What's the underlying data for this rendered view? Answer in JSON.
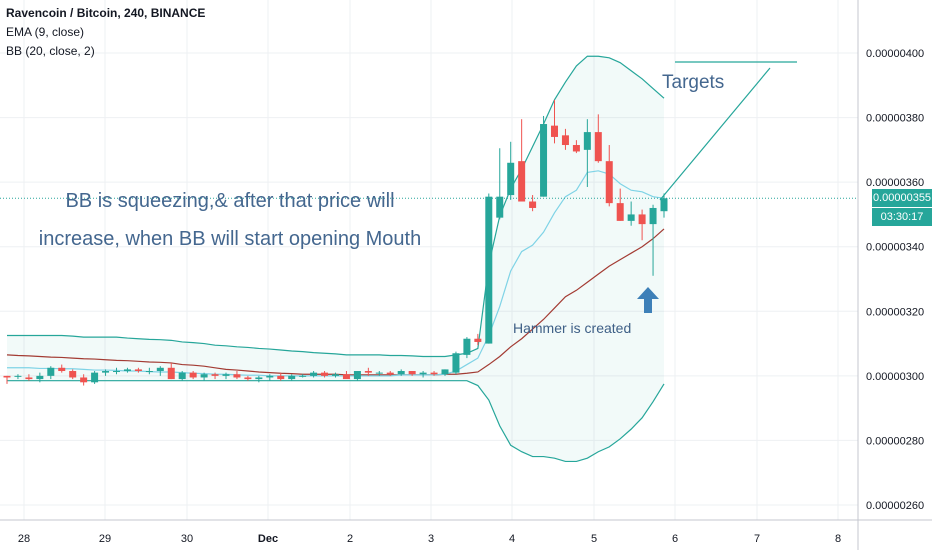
{
  "header": {
    "title": "Ravencoin / Bitcoin, 240, BINANCE",
    "ema": "EMA (9, close)",
    "bb": "BB (20, close, 2)"
  },
  "annotations": {
    "main_line1": "BB is squeezing,& after that price will",
    "main_line2": "increase, when BB will start opening Mouth",
    "targets": "Targets",
    "hammer": "Hammer is created"
  },
  "price_tag": "0.00000355",
  "timer_tag": "03:30:17",
  "colors": {
    "up": "#26a69a",
    "down": "#ef5350",
    "ema": "#7fd3e6",
    "bb_basis": "#a33b33",
    "bb_band": "#26a69a",
    "annotation_text": "#44678f",
    "arrow": "#3e80b8"
  },
  "icons": {
    "arrow": "arrow-up-icon"
  },
  "chart_data": {
    "type": "candlestick",
    "x_ticks": [
      "28",
      "29",
      "30",
      "Dec",
      "2",
      "3",
      "4",
      "5",
      "6",
      "7",
      "8"
    ],
    "y_ticks": [
      "0.00000260",
      "0.00000280",
      "0.00000300",
      "0.00000320",
      "0.00000340",
      "0.00000360",
      "0.00000380",
      "0.00000400"
    ],
    "ylim": [
      2.55e-06,
      4.1e-06
    ],
    "last_price": 3.55e-06,
    "grid": true,
    "candles": [
      [
        3e-06,
        3e-06,
        2.975e-06,
        2.995e-06
      ],
      [
        3e-06,
        3.005e-06,
        2.99e-06,
        3e-06
      ],
      [
        2.995e-06,
        3.005e-06,
        2.985e-06,
        2.99e-06
      ],
      [
        2.99e-06,
        3.01e-06,
        2.98e-06,
        3e-06
      ],
      [
        3e-06,
        3.03e-06,
        2.99e-06,
        3.025e-06
      ],
      [
        3.025e-06,
        3.035e-06,
        3.01e-06,
        3.015e-06
      ],
      [
        3.015e-06,
        3.02e-06,
        2.99e-06,
        2.995e-06
      ],
      [
        2.995e-06,
        3.005e-06,
        2.97e-06,
        2.98e-06
      ],
      [
        2.98e-06,
        3.015e-06,
        2.975e-06,
        3.01e-06
      ],
      [
        3.01e-06,
        3.02e-06,
        3e-06,
        3.015e-06
      ],
      [
        3.015e-06,
        3.025e-06,
        3.005e-06,
        3.015e-06
      ],
      [
        3.015e-06,
        3.025e-06,
        3.01e-06,
        3.02e-06
      ],
      [
        3.02e-06,
        3.025e-06,
        3.01e-06,
        3.015e-06
      ],
      [
        3.015e-06,
        3.025e-06,
        3.005e-06,
        3.015e-06
      ],
      [
        3.015e-06,
        3.03e-06,
        3e-06,
        3.025e-06
      ],
      [
        3.025e-06,
        3.04e-06,
        2.99e-06,
        2.99e-06
      ],
      [
        2.99e-06,
        3.015e-06,
        2.985e-06,
        3.01e-06
      ],
      [
        3.01e-06,
        3.015e-06,
        2.99e-06,
        2.995e-06
      ],
      [
        2.995e-06,
        3.01e-06,
        2.985e-06,
        3.005e-06
      ],
      [
        3.005e-06,
        3.01e-06,
        2.99e-06,
        3e-06
      ],
      [
        3e-06,
        3.01e-06,
        2.99e-06,
        3.005e-06
      ],
      [
        3.005e-06,
        3.015e-06,
        2.99e-06,
        2.995e-06
      ],
      [
        2.995e-06,
        3e-06,
        2.985e-06,
        2.99e-06
      ],
      [
        2.99e-06,
        3e-06,
        2.98e-06,
        2.995e-06
      ],
      [
        2.995e-06,
        3.005e-06,
        2.985e-06,
        3e-06
      ],
      [
        3e-06,
        3.01e-06,
        2.985e-06,
        2.99e-06
      ],
      [
        2.99e-06,
        3.005e-06,
        2.985e-06,
        3e-06
      ],
      [
        3e-06,
        3.005e-06,
        2.995e-06,
        3e-06
      ],
      [
        3e-06,
        3.015e-06,
        2.995e-06,
        3.01e-06
      ],
      [
        3.01e-06,
        3.015e-06,
        2.995e-06,
        3e-06
      ],
      [
        3e-06,
        3.01e-06,
        2.995e-06,
        3.005e-06
      ],
      [
        3.005e-06,
        3.015e-06,
        2.995e-06,
        2.99e-06
      ],
      [
        2.99e-06,
        3.015e-06,
        2.985e-06,
        3.015e-06
      ],
      [
        3.015e-06,
        3.025e-06,
        3e-06,
        3.01e-06
      ],
      [
        3.01e-06,
        3.015e-06,
        3e-06,
        3.01e-06
      ],
      [
        3.01e-06,
        3.015e-06,
        3e-06,
        3.005e-06
      ],
      [
        3.005e-06,
        3.02e-06,
        3e-06,
        3.015e-06
      ],
      [
        3.015e-06,
        3.015e-06,
        3e-06,
        3.005e-06
      ],
      [
        3.005e-06,
        3.015e-06,
        2.995e-06,
        3.01e-06
      ],
      [
        3.01e-06,
        3.015e-06,
        3e-06,
        3.005e-06
      ],
      [
        3.005e-06,
        3.02e-06,
        3e-06,
        3.02e-06
      ],
      [
        3.01e-06,
        3.075e-06,
        3.005e-06,
        3.07e-06
      ],
      [
        3.065e-06,
        3.12e-06,
        3.055e-06,
        3.115e-06
      ],
      [
        3.115e-06,
        3.13e-06,
        3.095e-06,
        3.105e-06
      ],
      [
        3.1e-06,
        3.565e-06,
        3.1e-06,
        3.555e-06
      ],
      [
        3.49e-06,
        3.705e-06,
        3.485e-06,
        3.555e-06
      ],
      [
        3.56e-06,
        3.725e-06,
        3.545e-06,
        3.66e-06
      ],
      [
        3.665e-06,
        3.795e-06,
        3.54e-06,
        3.54e-06
      ],
      [
        3.54e-06,
        3.56e-06,
        3.51e-06,
        3.52e-06
      ],
      [
        3.555e-06,
        3.805e-06,
        3.555e-06,
        3.78e-06
      ],
      [
        3.775e-06,
        3.855e-06,
        3.72e-06,
        3.74e-06
      ],
      [
        3.745e-06,
        3.765e-06,
        3.7e-06,
        3.715e-06
      ],
      [
        3.715e-06,
        3.73e-06,
        3.69e-06,
        3.695e-06
      ],
      [
        3.7e-06,
        3.795e-06,
        3.585e-06,
        3.755e-06
      ],
      [
        3.755e-06,
        3.81e-06,
        3.66e-06,
        3.665e-06
      ],
      [
        3.665e-06,
        3.715e-06,
        3.525e-06,
        3.535e-06
      ],
      [
        3.535e-06,
        3.58e-06,
        3.48e-06,
        3.48e-06
      ],
      [
        3.48e-06,
        3.54e-06,
        3.465e-06,
        3.5e-06
      ],
      [
        3.5e-06,
        3.515e-06,
        3.42e-06,
        3.47e-06
      ],
      [
        3.47e-06,
        3.53e-06,
        3.31e-06,
        3.52e-06
      ],
      [
        3.51e-06,
        3.565e-06,
        3.49e-06,
        3.55e-06
      ]
    ],
    "ema": [
      3.025e-06,
      3.025e-06,
      3.025e-06,
      3.023e-06,
      3.023e-06,
      3.022e-06,
      3.022e-06,
      3.02e-06,
      3.018e-06,
      3.018e-06,
      3.017e-06,
      3.015e-06,
      3.015e-06,
      3.013e-06,
      3.012e-06,
      3.012e-06,
      3.01e-06,
      3.008e-06,
      3.007e-06,
      3.005e-06,
      3.005e-06,
      3.003e-06,
      3.002e-06,
      3.002e-06,
      3e-06,
      3e-06,
      3e-06,
      3e-06,
      3e-06,
      3e-06,
      3e-06,
      3e-06,
      3e-06,
      3e-06,
      3e-06,
      3e-06,
      3.003e-06,
      3.003e-06,
      3.003e-06,
      3.003e-06,
      3.005e-06,
      3.015e-06,
      3.035e-06,
      3.055e-06,
      3.125e-06,
      3.215e-06,
      3.325e-06,
      3.385e-06,
      3.405e-06,
      3.445e-06,
      3.505e-06,
      3.555e-06,
      3.575e-06,
      3.63e-06,
      3.635e-06,
      3.625e-06,
      3.595e-06,
      3.575e-06,
      3.57e-06,
      3.555e-06,
      3.55e-06
    ],
    "bb_basis": [
      3.065e-06,
      3.063e-06,
      3.062e-06,
      3.06e-06,
      3.058e-06,
      3.057e-06,
      3.055e-06,
      3.053e-06,
      3.052e-06,
      3.05e-06,
      3.048e-06,
      3.047e-06,
      3.045e-06,
      3.043e-06,
      3.042e-06,
      3.04e-06,
      3.035e-06,
      3.033e-06,
      3.03e-06,
      3.025e-06,
      3.02e-06,
      3.018e-06,
      3.015e-06,
      3.012e-06,
      3.01e-06,
      3.008e-06,
      3.007e-06,
      3.005e-06,
      3.005e-06,
      3.005e-06,
      3.005e-06,
      3.003e-06,
      3.003e-06,
      3.003e-06,
      3.003e-06,
      3.003e-06,
      3.003e-06,
      3.003e-06,
      3.003e-06,
      3.003e-06,
      3.005e-06,
      3.005e-06,
      3.008e-06,
      3.012e-06,
      3.035e-06,
      3.06e-06,
      3.09e-06,
      3.115e-06,
      3.145e-06,
      3.175e-06,
      3.21e-06,
      3.245e-06,
      3.265e-06,
      3.29e-06,
      3.315e-06,
      3.34e-06,
      3.36e-06,
      3.38e-06,
      3.4e-06,
      3.425e-06,
      3.455e-06
    ],
    "bb_upper": [
      3.125e-06,
      3.125e-06,
      3.125e-06,
      3.125e-06,
      3.125e-06,
      3.125e-06,
      3.123e-06,
      3.12e-06,
      3.12e-06,
      3.12e-06,
      3.12e-06,
      3.117e-06,
      3.115e-06,
      3.113e-06,
      3.112e-06,
      3.11e-06,
      3.105e-06,
      3.103e-06,
      3.1e-06,
      3.095e-06,
      3.093e-06,
      3.09e-06,
      3.088e-06,
      3.085e-06,
      3.083e-06,
      3.08e-06,
      3.077e-06,
      3.075e-06,
      3.072e-06,
      3.07e-06,
      3.068e-06,
      3.065e-06,
      3.065e-06,
      3.065e-06,
      3.065e-06,
      3.063e-06,
      3.063e-06,
      3.062e-06,
      3.06e-06,
      3.06e-06,
      3.06e-06,
      3.065e-06,
      3.07e-06,
      3.085e-06,
      3.345e-06,
      3.495e-06,
      3.58e-06,
      3.64e-06,
      3.71e-06,
      3.78e-06,
      3.855e-06,
      3.91e-06,
      3.96e-06,
      3.99e-06,
      3.99e-06,
      3.985e-06,
      3.97e-06,
      3.945e-06,
      3.92e-06,
      3.89e-06,
      3.86e-06
    ],
    "bb_lower": [
      2.985e-06,
      2.985e-06,
      2.985e-06,
      2.985e-06,
      2.985e-06,
      2.985e-06,
      2.985e-06,
      2.985e-06,
      2.985e-06,
      2.985e-06,
      2.985e-06,
      2.985e-06,
      2.985e-06,
      2.985e-06,
      2.985e-06,
      2.985e-06,
      2.985e-06,
      2.985e-06,
      2.985e-06,
      2.985e-06,
      2.985e-06,
      2.985e-06,
      2.985e-06,
      2.985e-06,
      2.985e-06,
      2.985e-06,
      2.985e-06,
      2.985e-06,
      2.985e-06,
      2.985e-06,
      2.985e-06,
      2.985e-06,
      2.985e-06,
      2.985e-06,
      2.985e-06,
      2.985e-06,
      2.985e-06,
      2.985e-06,
      2.985e-06,
      2.985e-06,
      2.985e-06,
      2.985e-06,
      2.985e-06,
      2.97e-06,
      2.925e-06,
      2.845e-06,
      2.785e-06,
      2.765e-06,
      2.75e-06,
      2.75e-06,
      2.745e-06,
      2.735e-06,
      2.735e-06,
      2.745e-06,
      2.765e-06,
      2.78e-06,
      2.805e-06,
      2.835e-06,
      2.87e-06,
      2.92e-06,
      2.975e-06
    ]
  }
}
